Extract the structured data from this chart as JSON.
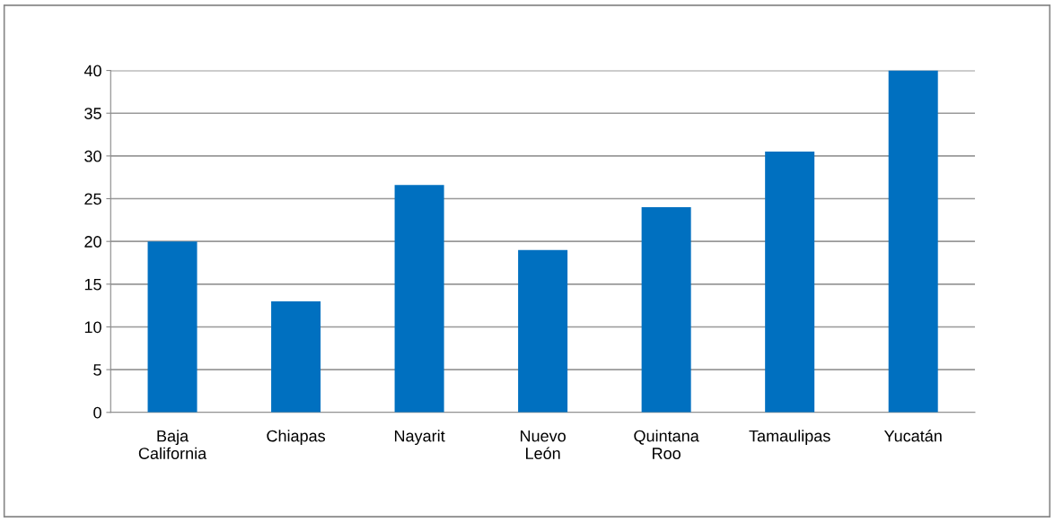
{
  "chart_data": {
    "type": "bar",
    "categories": [
      "Baja\nCalifornia",
      "Chiapas",
      "Nayarit",
      "Nuevo\nLeón",
      "Quintana\nRoo",
      "Tamaulipas",
      "Yucatán"
    ],
    "values": [
      20,
      13,
      26.6,
      19,
      24,
      30.5,
      40
    ],
    "color": "#0070c0",
    "ylim": [
      0,
      40
    ],
    "yticks": [
      0,
      5,
      10,
      15,
      20,
      25,
      30,
      35,
      40
    ],
    "grid": "y",
    "legend": false
  }
}
